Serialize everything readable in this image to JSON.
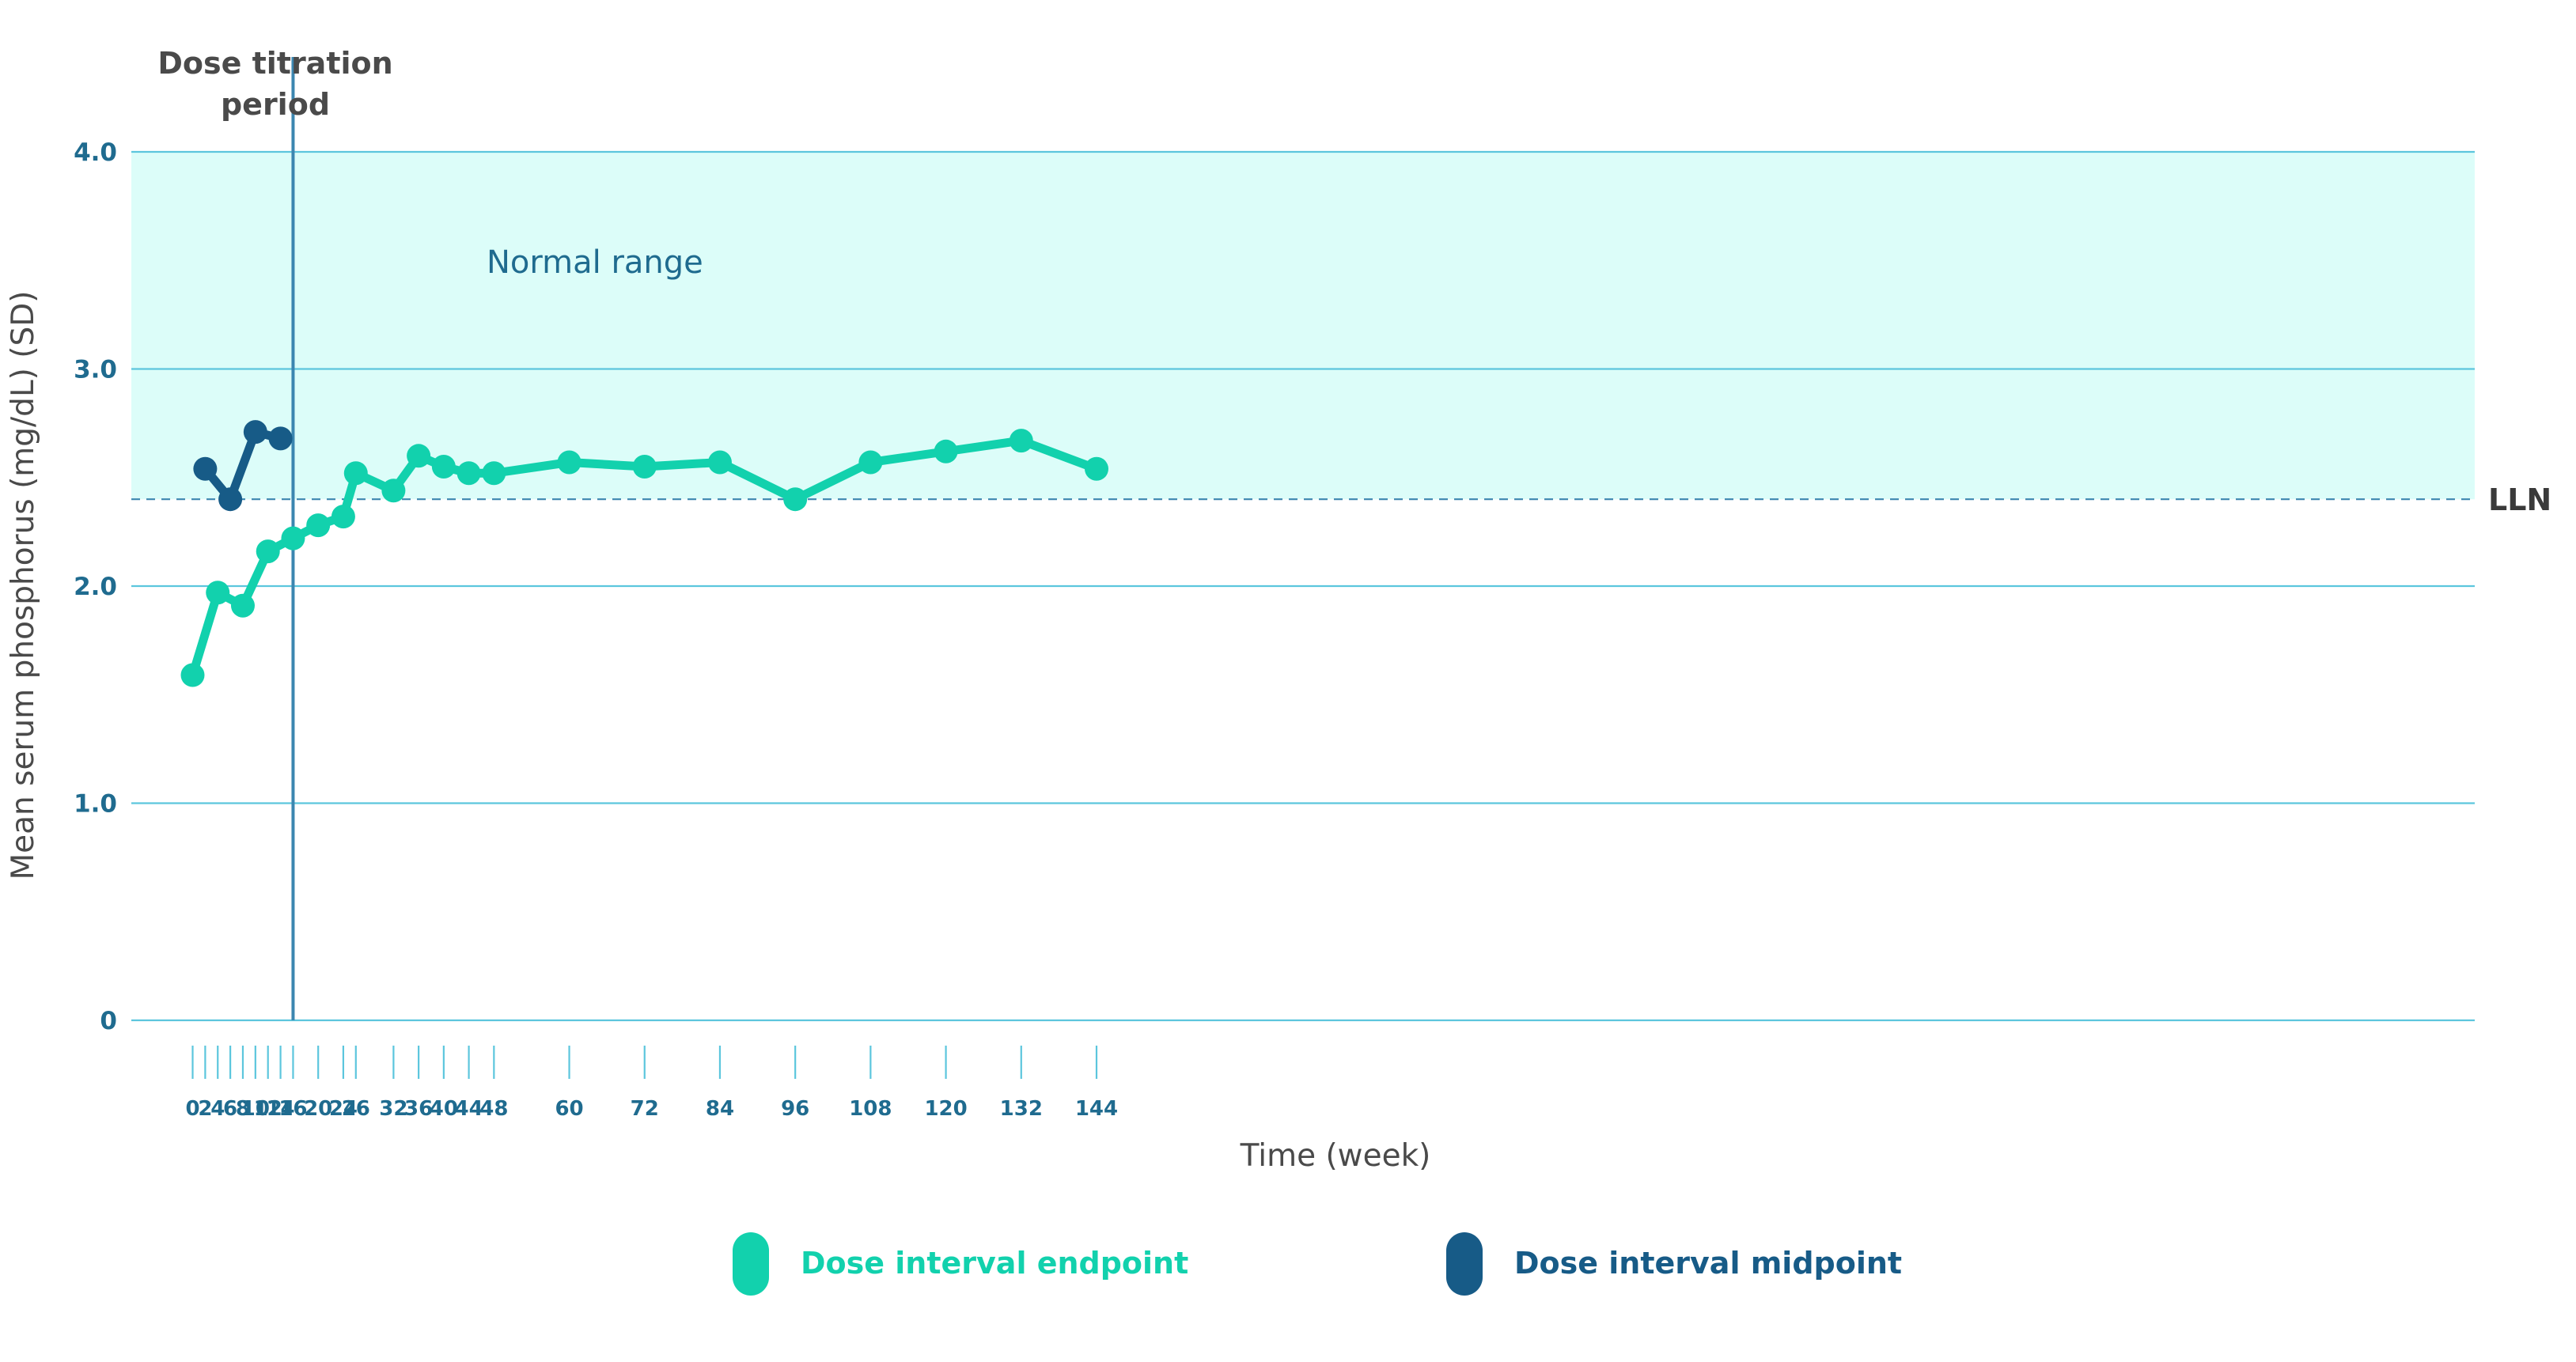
{
  "chart_data": {
    "type": "line",
    "title": "",
    "xlabel": "Time (week)",
    "ylabel": "Mean serum phosphorus (mg/dL) (SD)",
    "ylim": [
      0,
      4.0
    ],
    "yticks": [
      0,
      1.0,
      2.0,
      3.0,
      4.0
    ],
    "ytick_labels": [
      "0",
      "1.0",
      "2.0",
      "3.0",
      "4.0"
    ],
    "xticks": [
      0,
      2,
      4,
      6,
      8,
      10,
      12,
      14,
      16,
      20,
      24,
      26,
      32,
      36,
      40,
      44,
      48,
      60,
      72,
      84,
      96,
      108,
      120,
      132,
      144
    ],
    "xtick_labels": [
      "0",
      "2",
      "4",
      "6",
      "8",
      "10",
      "12",
      "14",
      "16",
      "20",
      "24",
      "26",
      "32",
      "36",
      "40",
      "44",
      "48",
      "60",
      "72",
      "84",
      "96",
      "108",
      "120",
      "132",
      "144"
    ],
    "normal_range": {
      "low": 2.4,
      "high": 4.0,
      "label": "Normal range"
    },
    "lln": {
      "value": 2.4,
      "label": "LLN"
    },
    "titration_period": {
      "end_week": 16,
      "label_line1": "Dose titration",
      "label_line2": "period"
    },
    "series": [
      {
        "name": "Dose interval endpoint",
        "color": "#12d1ad",
        "points": [
          {
            "x": 0,
            "y": 1.59
          },
          {
            "x": 4,
            "y": 1.97
          },
          {
            "x": 8,
            "y": 1.91
          },
          {
            "x": 12,
            "y": 2.16
          },
          {
            "x": 16,
            "y": 2.22
          },
          {
            "x": 20,
            "y": 2.28
          },
          {
            "x": 24,
            "y": 2.32
          },
          {
            "x": 26,
            "y": 2.52
          },
          {
            "x": 32,
            "y": 2.44
          },
          {
            "x": 36,
            "y": 2.6
          },
          {
            "x": 40,
            "y": 2.55
          },
          {
            "x": 44,
            "y": 2.52
          },
          {
            "x": 48,
            "y": 2.52
          },
          {
            "x": 60,
            "y": 2.57
          },
          {
            "x": 72,
            "y": 2.55
          },
          {
            "x": 84,
            "y": 2.57
          },
          {
            "x": 96,
            "y": 2.4
          },
          {
            "x": 108,
            "y": 2.57
          },
          {
            "x": 120,
            "y": 2.62
          },
          {
            "x": 132,
            "y": 2.67
          },
          {
            "x": 144,
            "y": 2.54
          }
        ]
      },
      {
        "name": "Dose interval midpoint",
        "color": "#175b87",
        "points": [
          {
            "x": 2,
            "y": 2.54
          },
          {
            "x": 6,
            "y": 2.4
          },
          {
            "x": 10,
            "y": 2.71
          },
          {
            "x": 14,
            "y": 2.68
          }
        ]
      }
    ],
    "colors": {
      "normal_fill": "#dcfdf9",
      "grid": "#5cc6dd",
      "titration_line": "#3c86b0",
      "lln_line": "#3c86b0"
    }
  }
}
